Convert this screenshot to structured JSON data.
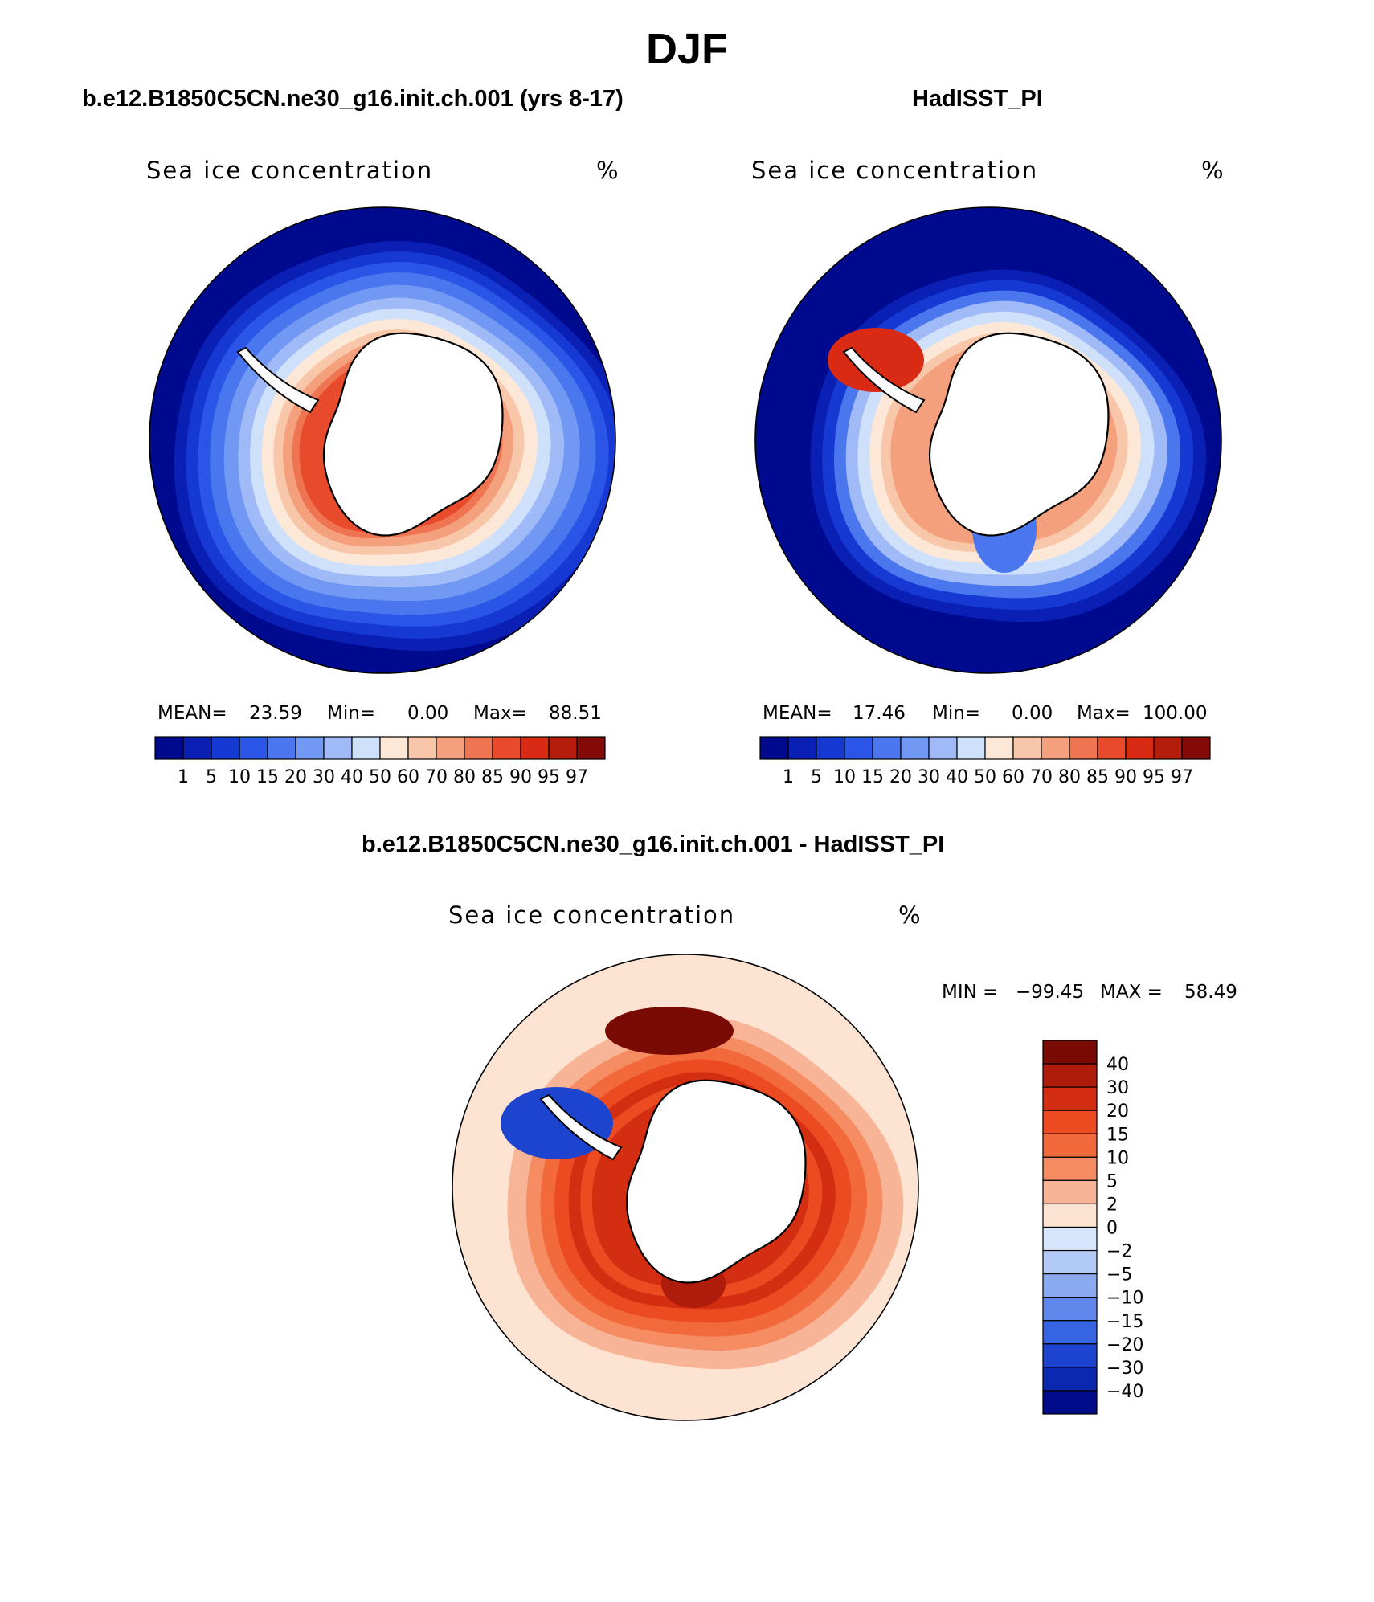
{
  "figure": {
    "title": "DJF"
  },
  "panels": {
    "model": {
      "title": "b.e12.B1850C5CN.ne30_g16.init.ch.001 (yrs 8-17)",
      "field_label": "Sea ice concentration",
      "units": "%",
      "stats": {
        "mean_label": "MEAN=",
        "mean": "23.59",
        "min_label": "Min=",
        "min": "0.00",
        "max_label": "Max=",
        "max": "88.51"
      }
    },
    "obs": {
      "title": "HadISST_PI",
      "field_label": "Sea ice concentration",
      "units": "%",
      "stats": {
        "mean_label": "MEAN=",
        "mean": "17.46",
        "min_label": "Min=",
        "min": "0.00",
        "max_label": "Max=",
        "max": "100.00"
      }
    },
    "diff": {
      "title": "b.e12.B1850C5CN.ne30_g16.init.ch.001 - HadISST_PI",
      "field_label": "Sea ice concentration",
      "units": "%",
      "stats": {
        "min_label": "MIN =",
        "min": "−99.45",
        "max_label": "MAX =",
        "max": "58.49"
      }
    }
  },
  "chart_data": [
    {
      "type": "heatmap",
      "projection": "south polar stereographic",
      "title": "b.e12.B1850C5CN.ne30_g16.init.ch.001 (yrs 8-17)",
      "variable": "Sea ice concentration",
      "units": "%",
      "mean": 23.59,
      "min": 0.0,
      "max": 88.51,
      "contour_levels": [
        1,
        5,
        10,
        15,
        20,
        30,
        40,
        50,
        60,
        70,
        80,
        85,
        90,
        95,
        97
      ],
      "colors": [
        "#000a8f",
        "#0a1fb4",
        "#1539d2",
        "#2a55e6",
        "#4a76ee",
        "#7198f2",
        "#9fbaf6",
        "#cfe0fa",
        "#fde8d8",
        "#f8c6a8",
        "#f4a07c",
        "#ee7452",
        "#e84b2c",
        "#d92b14",
        "#b41c0c",
        "#830a06"
      ]
    },
    {
      "type": "heatmap",
      "projection": "south polar stereographic",
      "title": "HadISST_PI",
      "variable": "Sea ice concentration",
      "units": "%",
      "mean": 17.46,
      "min": 0.0,
      "max": 100.0,
      "contour_levels": [
        1,
        5,
        10,
        15,
        20,
        30,
        40,
        50,
        60,
        70,
        80,
        85,
        90,
        95,
        97
      ],
      "colors": [
        "#000a8f",
        "#0a1fb4",
        "#1539d2",
        "#2a55e6",
        "#4a76ee",
        "#7198f2",
        "#9fbaf6",
        "#cfe0fa",
        "#fde8d8",
        "#f8c6a8",
        "#f4a07c",
        "#ee7452",
        "#e84b2c",
        "#d92b14",
        "#b41c0c",
        "#830a06"
      ]
    },
    {
      "type": "heatmap",
      "projection": "south polar stereographic",
      "title": "b.e12.B1850C5CN.ne30_g16.init.ch.001 - HadISST_PI",
      "variable": "Sea ice concentration",
      "units": "%",
      "min": -99.45,
      "max": 58.49,
      "contour_levels": [
        40,
        30,
        20,
        15,
        10,
        5,
        2,
        0,
        -2,
        -5,
        -10,
        -15,
        -20,
        -30,
        -40
      ],
      "colors": [
        "#7a0a04",
        "#b01c0c",
        "#d42e12",
        "#ec4b22",
        "#f26a3c",
        "#f58c62",
        "#f8b496",
        "#fde3d2",
        "#d5e5fb",
        "#b2cbf6",
        "#8aabf1",
        "#5f87ec",
        "#3664e3",
        "#1c44cf",
        "#0b28b0",
        "#000c8a"
      ]
    }
  ]
}
